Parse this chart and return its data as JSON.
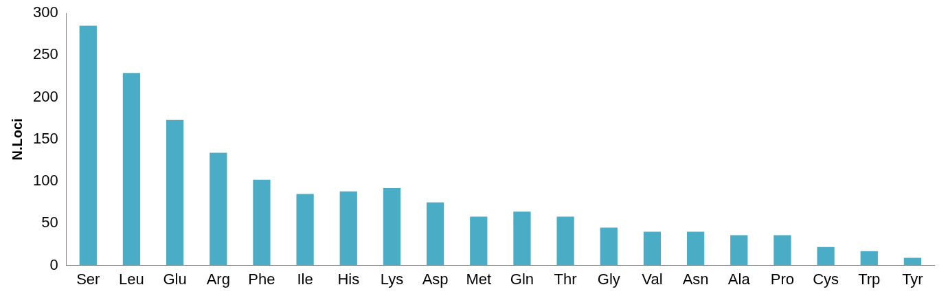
{
  "chart_data": {
    "type": "bar",
    "ylabel": "N.Loci",
    "categories": [
      "Ser",
      "Leu",
      "Glu",
      "Arg",
      "Phe",
      "Ile",
      "His",
      "Lys",
      "Asp",
      "Met",
      "Gln",
      "Thr",
      "Gly",
      "Val",
      "Asn",
      "Ala",
      "Pro",
      "Cys",
      "Trp",
      "Tyr"
    ],
    "values": [
      285,
      229,
      173,
      134,
      102,
      85,
      88,
      92,
      75,
      58,
      64,
      58,
      45,
      40,
      40,
      36,
      36,
      22,
      17,
      9
    ],
    "color": "#4bacc6",
    "ylim": [
      0,
      300
    ],
    "yticks": [
      0,
      50,
      100,
      150,
      200,
      250,
      300
    ],
    "grid": false,
    "legend": false
  }
}
